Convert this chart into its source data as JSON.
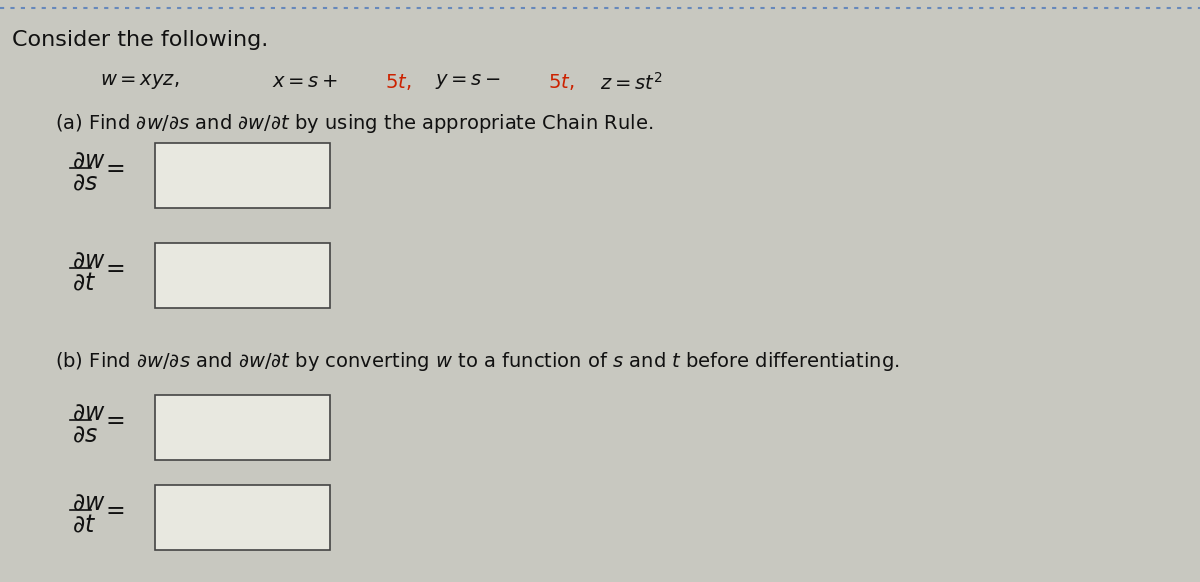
{
  "background_color": "#c8c8c0",
  "box_fill_color": "#e8e8e0",
  "box_edge_color": "#444444",
  "text_color": "#111111",
  "red_color": "#cc2200",
  "title_text": "Consider the following.",
  "eq_line": "w = xyz,    x = s + 5t,    y = s – 5t,    z = st²",
  "part_a_label": "(a) Find ∂w/∂s and ∂w/∂t by using the appropriate Chain Rule.",
  "part_b_label": "(b) Find ∂w/∂s and ∂w/∂t by converting w to a function of s and t before differentiating.",
  "dotted_line_color": "#6688bb",
  "fig_width": 12.0,
  "fig_height": 5.82,
  "dpi": 100
}
